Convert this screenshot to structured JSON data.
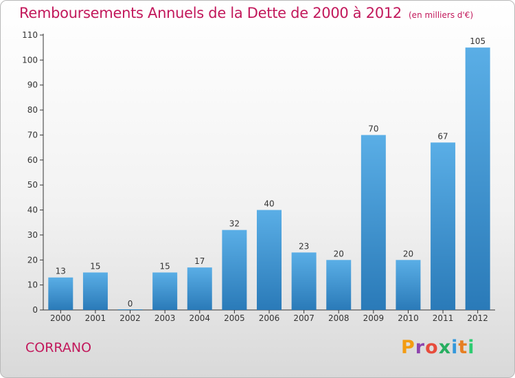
{
  "title": "Remboursements Annuels de la Dette de 2000 à 2012",
  "unit_note": "(en milliers d'€)",
  "commune": "CORRANO",
  "logo": {
    "text": "Proxiti",
    "colors": [
      "#f39c12",
      "#8e44ad",
      "#e74c3c",
      "#27ae60",
      "#3498db",
      "#e67e22",
      "#2ecc71"
    ]
  },
  "colors": {
    "bar_top": "#5aaee6",
    "bar_bottom": "#2a7ab8",
    "title": "#c2185b",
    "axis": "#333333"
  },
  "chart_data": {
    "type": "bar",
    "categories": [
      "2000",
      "2001",
      "2002",
      "2003",
      "2004",
      "2005",
      "2006",
      "2007",
      "2008",
      "2009",
      "2010",
      "2011",
      "2012"
    ],
    "values": [
      13,
      15,
      0,
      15,
      17,
      32,
      40,
      23,
      20,
      70,
      20,
      67,
      105
    ],
    "ylim": [
      0,
      110
    ],
    "yticks": [
      0,
      10,
      20,
      30,
      40,
      50,
      60,
      70,
      80,
      90,
      100,
      110
    ],
    "grid": false,
    "data_labels": true
  }
}
